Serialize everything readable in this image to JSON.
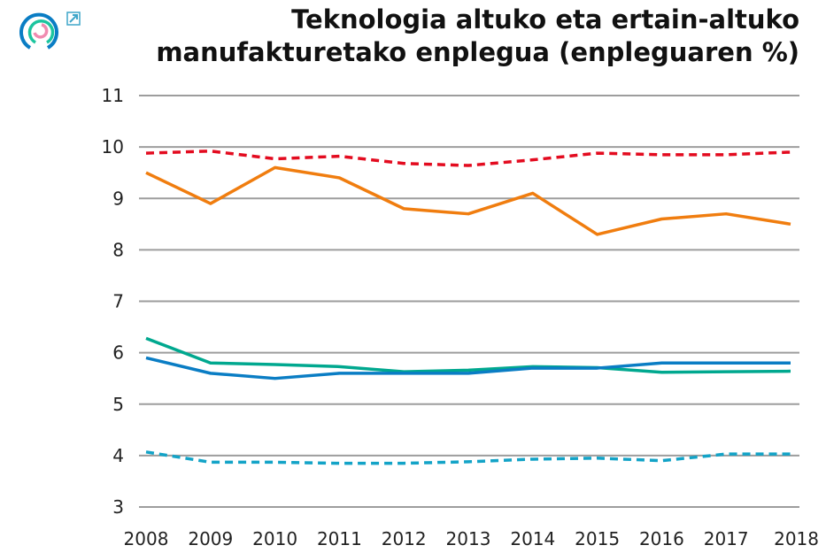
{
  "chart_data": {
    "type": "line",
    "title": "Teknologia altuko eta ertain-altuko manufakturetako enplegua (enpleguaren %)",
    "title_lines": [
      "Teknologia altuko eta ertain-altuko",
      "manufakturetako enplegua (enpleguaren %)"
    ],
    "x": [
      "2008",
      "2009",
      "2010",
      "2011",
      "2012",
      "2013",
      "2014",
      "2015",
      "2016",
      "2017",
      "2018"
    ],
    "ylim": [
      3,
      11
    ],
    "yticks": [
      3,
      4,
      5,
      6,
      7,
      8,
      9,
      10,
      11
    ],
    "grid": true,
    "legend": "none",
    "series": [
      {
        "color": "#e30b1f",
        "dashed": true,
        "values": [
          9.88,
          9.92,
          9.77,
          9.82,
          9.68,
          9.64,
          9.75,
          9.88,
          9.85,
          9.85,
          9.9
        ]
      },
      {
        "color": "#f07d0f",
        "dashed": false,
        "values": [
          9.5,
          8.9,
          9.6,
          9.4,
          8.8,
          8.7,
          9.1,
          8.3,
          8.6,
          8.7,
          8.5
        ]
      },
      {
        "color": "#00a88f",
        "dashed": false,
        "values": [
          6.28,
          5.8,
          5.77,
          5.73,
          5.63,
          5.66,
          5.73,
          5.71,
          5.62,
          5.63,
          5.64
        ]
      },
      {
        "color": "#0a7dc4",
        "dashed": false,
        "values": [
          5.9,
          5.6,
          5.5,
          5.6,
          5.6,
          5.6,
          5.7,
          5.7,
          5.8,
          5.8,
          5.8
        ]
      },
      {
        "color": "#13a3c7",
        "dashed": true,
        "values": [
          4.07,
          3.87,
          3.87,
          3.85,
          3.85,
          3.88,
          3.93,
          3.95,
          3.9,
          4.03,
          4.03
        ]
      }
    ]
  },
  "icons": {
    "logo": "circular-rings-logo",
    "external": "external-link-icon"
  }
}
